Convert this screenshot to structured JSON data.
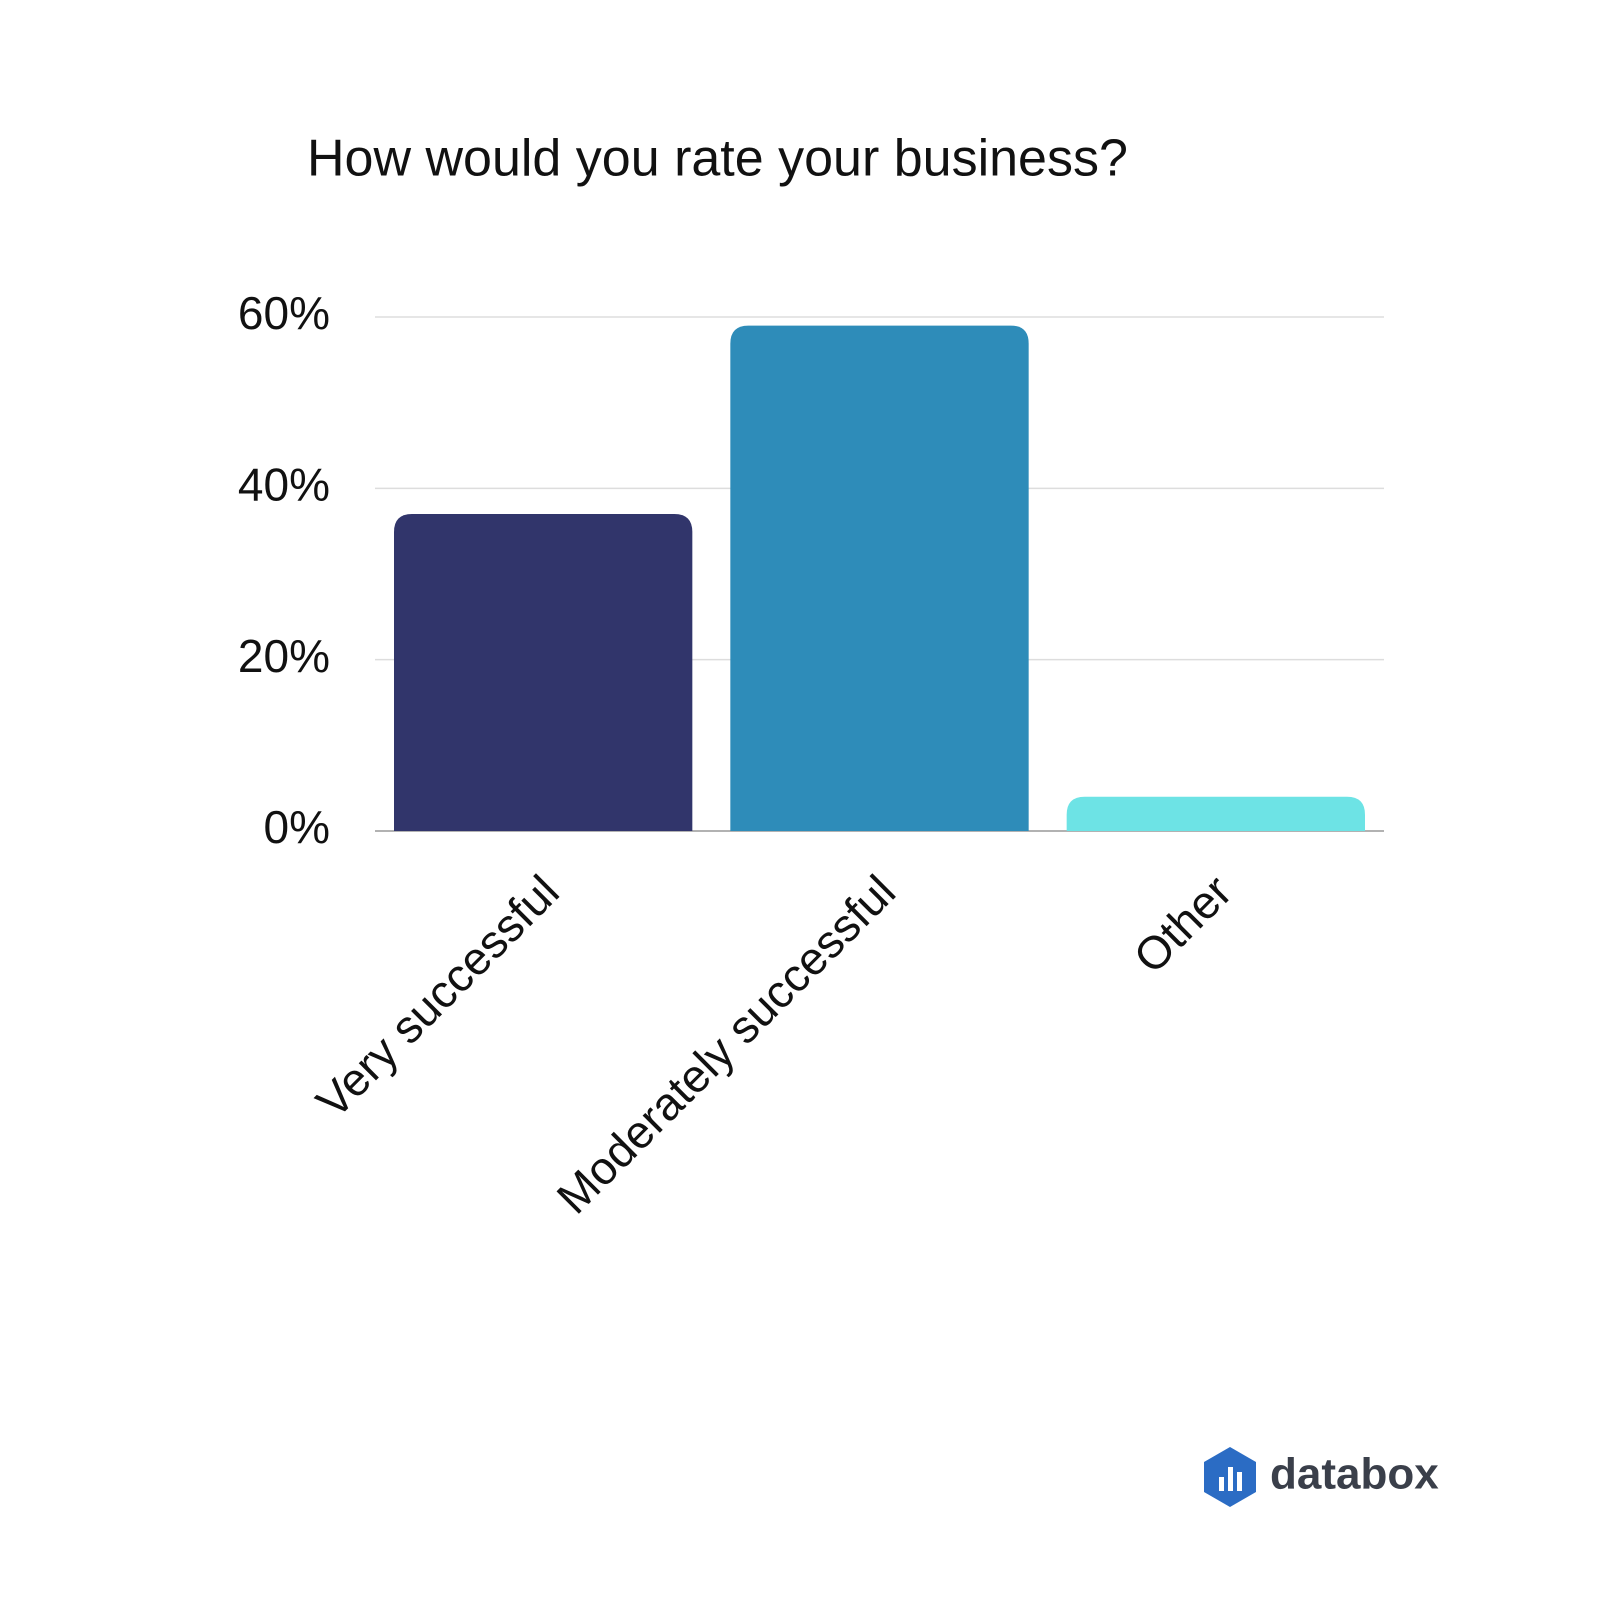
{
  "chart_data": {
    "type": "bar",
    "title": "How would you rate your business?",
    "categories": [
      "Very successful",
      "Moderately successful",
      "Other"
    ],
    "values": [
      37,
      59,
      4
    ],
    "colors": [
      "#31356b",
      "#2e8cb9",
      "#6de3e5"
    ],
    "ylim": [
      0,
      60
    ],
    "yticks": [
      {
        "value": 0,
        "label": "0%"
      },
      {
        "value": 20,
        "label": "20%"
      },
      {
        "value": 40,
        "label": "40%"
      },
      {
        "value": 60,
        "label": "60%"
      }
    ],
    "grid": true
  },
  "brand": "databox"
}
